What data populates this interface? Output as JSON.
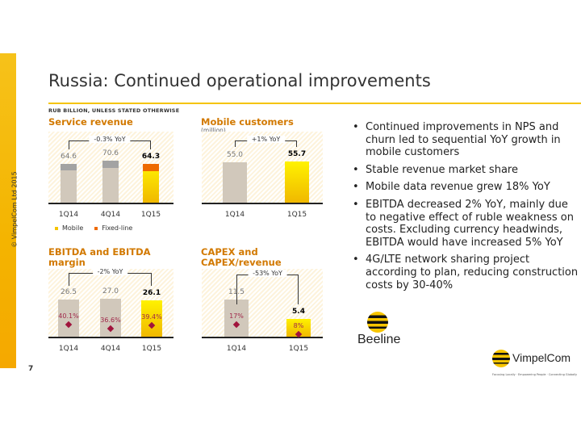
{
  "title": "Russia: Continued operational improvements",
  "copyright": "© VimpelCom Ltd 2015",
  "unit_note": "RUB BILLION, UNLESS STATED OTHERWISE",
  "page_number": "7",
  "colors": {
    "accent": "#d27900",
    "yellow": "#f5c400",
    "orange": "#ee6a00",
    "beige": "#d1c8bb",
    "gray": "#a3a3a3",
    "margin": "#a0143c"
  },
  "chart_data": [
    {
      "type": "bar",
      "title": "Service revenue",
      "categories": [
        "1Q14",
        "4Q14",
        "1Q15"
      ],
      "values": [
        64.6,
        70.6,
        64.3
      ],
      "value_labels": [
        "64.6",
        "70.6",
        "64.3"
      ],
      "series": [
        {
          "name": "Mobile",
          "values": [
            53.6,
            57.6,
            53.0
          ]
        },
        {
          "name": "Fixed-line",
          "values": [
            11.0,
            13.0,
            11.3
          ]
        }
      ],
      "annotation": "-0.3% YoY"
    },
    {
      "type": "bar",
      "title": "Mobile customers",
      "subtitle": "(million)",
      "categories": [
        "1Q14",
        "1Q15"
      ],
      "values": [
        55.0,
        55.7
      ],
      "value_labels": [
        "55.0",
        "55.7"
      ],
      "annotation": "+1% YoY"
    },
    {
      "type": "bar",
      "title": "EBITDA and EBITDA margin",
      "categories": [
        "1Q14",
        "4Q14",
        "1Q15"
      ],
      "values": [
        26.5,
        27.0,
        26.1
      ],
      "value_labels": [
        "26.5",
        "27.0",
        "26.1"
      ],
      "margins": [
        "40.1%",
        "36.6%",
        "39.4%"
      ],
      "annotation": "-2% YoY"
    },
    {
      "type": "bar",
      "title": "CAPEX and CAPEX/revenue",
      "categories": [
        "1Q14",
        "1Q15"
      ],
      "values": [
        11.5,
        5.4
      ],
      "value_labels": [
        "11.5",
        "5.4"
      ],
      "margins": [
        "17%",
        "8%"
      ],
      "annotation": "-53% YoY"
    }
  ],
  "legend": [
    "Mobile",
    "Fixed-line"
  ],
  "bullets": [
    "Continued improvements in NPS and churn led to sequential YoY growth in mobile customers",
    "Stable revenue market share",
    "Mobile data revenue grew 18% YoY",
    "EBITDA decreased 2% YoY, mainly due to negative effect of ruble weakness on costs. Excluding currency headwinds, EBITDA would have increased 5% YoY",
    "4G/LTE network sharing project according to plan, reducing construction costs by 30-40%"
  ],
  "logos": {
    "beeline": "Beeline",
    "vimpelcom": "VimpelCom",
    "tagline": "Focusing Locally · Empowering People · Connecting Globally"
  }
}
